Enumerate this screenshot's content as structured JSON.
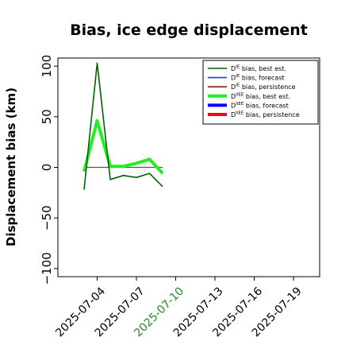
{
  "chart_data": {
    "type": "line",
    "title": "Bias, ice edge displacement",
    "xlabel": "",
    "ylabel": "Displacement bias (km)",
    "ylim": [
      -108,
      108
    ],
    "xlim": [
      "2025-07-01",
      "2025-07-21"
    ],
    "yticks": [
      100,
      50,
      0,
      -50,
      -100
    ],
    "yticklabels": [
      "100",
      "50",
      "0",
      "−50",
      "−100"
    ],
    "xticks": [
      "2025-07-04",
      "2025-07-07",
      "2025-07-10",
      "2025-07-13",
      "2025-07-16",
      "2025-07-19"
    ],
    "highlight_tick": "2025-07-10",
    "highlight_color": "#228b22",
    "grid": false,
    "legend_position": "top-right",
    "series": [
      {
        "name": "D^IE bias, best est.",
        "sup": "IE",
        "label": " bias, best est.",
        "color": "#006400",
        "linewidth": "thin",
        "x": [
          "2025-07-03",
          "2025-07-04",
          "2025-07-05",
          "2025-07-06",
          "2025-07-07",
          "2025-07-08",
          "2025-07-09"
        ],
        "y": [
          -22,
          103,
          -12,
          -8,
          -10,
          -6,
          -19
        ]
      },
      {
        "name": "D^IE bias, forecast",
        "sup": "IE",
        "label": " bias, forecast",
        "color": "#1f3fd0",
        "linewidth": "thin",
        "x": [],
        "y": []
      },
      {
        "name": "D^IE bias, persistence",
        "sup": "IE",
        "label": " bias, persistence",
        "color": "#8b1a1a",
        "linewidth": "thin",
        "x": [],
        "y": []
      },
      {
        "name": "D^IIEE bias, best est.",
        "sup": "IIEE",
        "label": " bias, best est.",
        "color": "#22ee22",
        "linewidth": "thick",
        "x": [
          "2025-07-03",
          "2025-07-04",
          "2025-07-05",
          "2025-07-06",
          "2025-07-07",
          "2025-07-08",
          "2025-07-09"
        ],
        "y": [
          -4,
          46,
          1,
          1,
          4,
          8,
          -6
        ]
      },
      {
        "name": "D^IIEE bias, forecast",
        "sup": "IIEE",
        "label": " bias, forecast",
        "color": "#0000ff",
        "linewidth": "thick",
        "x": [],
        "y": []
      },
      {
        "name": "D^IIEE bias, persistence",
        "sup": "IIEE",
        "label": " bias, persistence",
        "color": "#ff0000",
        "linewidth": "thick",
        "x": [],
        "y": []
      }
    ],
    "reference_line": {
      "y": 0,
      "x": [
        "2025-07-03",
        "2025-07-09"
      ],
      "color": "#555555"
    }
  }
}
